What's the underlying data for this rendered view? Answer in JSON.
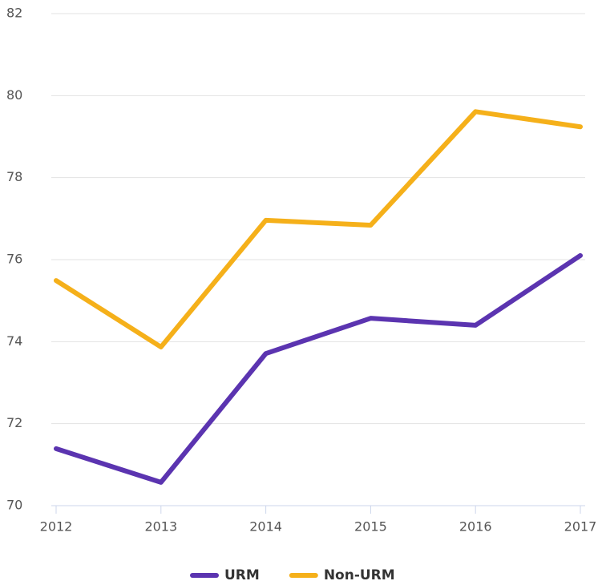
{
  "chart_data": {
    "type": "line",
    "x": [
      2012,
      2013,
      2014,
      2015,
      2016,
      2017
    ],
    "xlim": [
      2012,
      2017
    ],
    "xticks": [
      2012,
      2013,
      2014,
      2015,
      2016,
      2017
    ],
    "ylim": [
      70,
      82
    ],
    "yticks": [
      70,
      72,
      74,
      76,
      78,
      80,
      82
    ],
    "grid": true,
    "legend": "bottom",
    "series": [
      {
        "name": "URM",
        "color": "#5b34b0",
        "values": [
          71.39,
          70.57,
          73.71,
          74.57,
          74.4,
          76.1
        ]
      },
      {
        "name": "Non-URM",
        "color": "#f5b01a",
        "values": [
          75.49,
          73.87,
          76.96,
          76.84,
          79.61,
          79.24
        ]
      }
    ]
  }
}
